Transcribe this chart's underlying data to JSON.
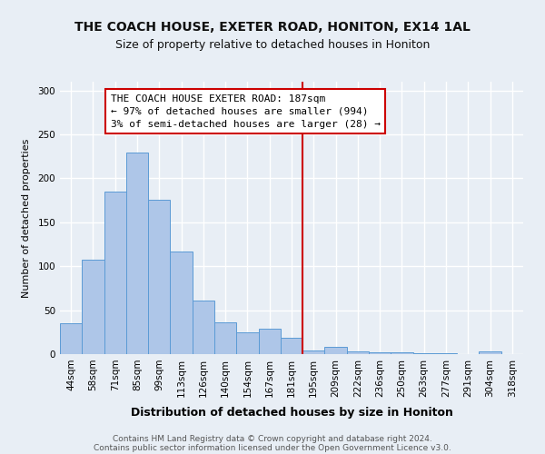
{
  "title1": "THE COACH HOUSE, EXETER ROAD, HONITON, EX14 1AL",
  "title2": "Size of property relative to detached houses in Honiton",
  "xlabel": "Distribution of detached houses by size in Honiton",
  "ylabel": "Number of detached properties",
  "bar_labels": [
    "44sqm",
    "58sqm",
    "71sqm",
    "85sqm",
    "99sqm",
    "113sqm",
    "126sqm",
    "140sqm",
    "154sqm",
    "167sqm",
    "181sqm",
    "195sqm",
    "209sqm",
    "222sqm",
    "236sqm",
    "250sqm",
    "263sqm",
    "277sqm",
    "291sqm",
    "304sqm",
    "318sqm"
  ],
  "bar_values": [
    35,
    107,
    185,
    229,
    176,
    117,
    61,
    36,
    25,
    29,
    19,
    4,
    8,
    3,
    2,
    2,
    1,
    1,
    0,
    3,
    0
  ],
  "bar_color": "#aec6e8",
  "bar_edge_color": "#5b9bd5",
  "vline_color": "#cc0000",
  "annotation_text": "THE COACH HOUSE EXETER ROAD: 187sqm\n← 97% of detached houses are smaller (994)\n3% of semi-detached houses are larger (28) →",
  "annotation_box_edgecolor": "#cc0000",
  "ylim": [
    0,
    310
  ],
  "yticks": [
    0,
    50,
    100,
    150,
    200,
    250,
    300
  ],
  "footer1": "Contains HM Land Registry data © Crown copyright and database right 2024.",
  "footer2": "Contains public sector information licensed under the Open Government Licence v3.0.",
  "bg_color": "#e8eef5",
  "plot_bg_color": "#e8eef5",
  "grid_color": "#ffffff",
  "title1_fontsize": 10,
  "title2_fontsize": 9,
  "xlabel_fontsize": 9,
  "ylabel_fontsize": 8,
  "tick_fontsize": 7.5,
  "footer_fontsize": 6.5,
  "annotation_fontsize": 8
}
